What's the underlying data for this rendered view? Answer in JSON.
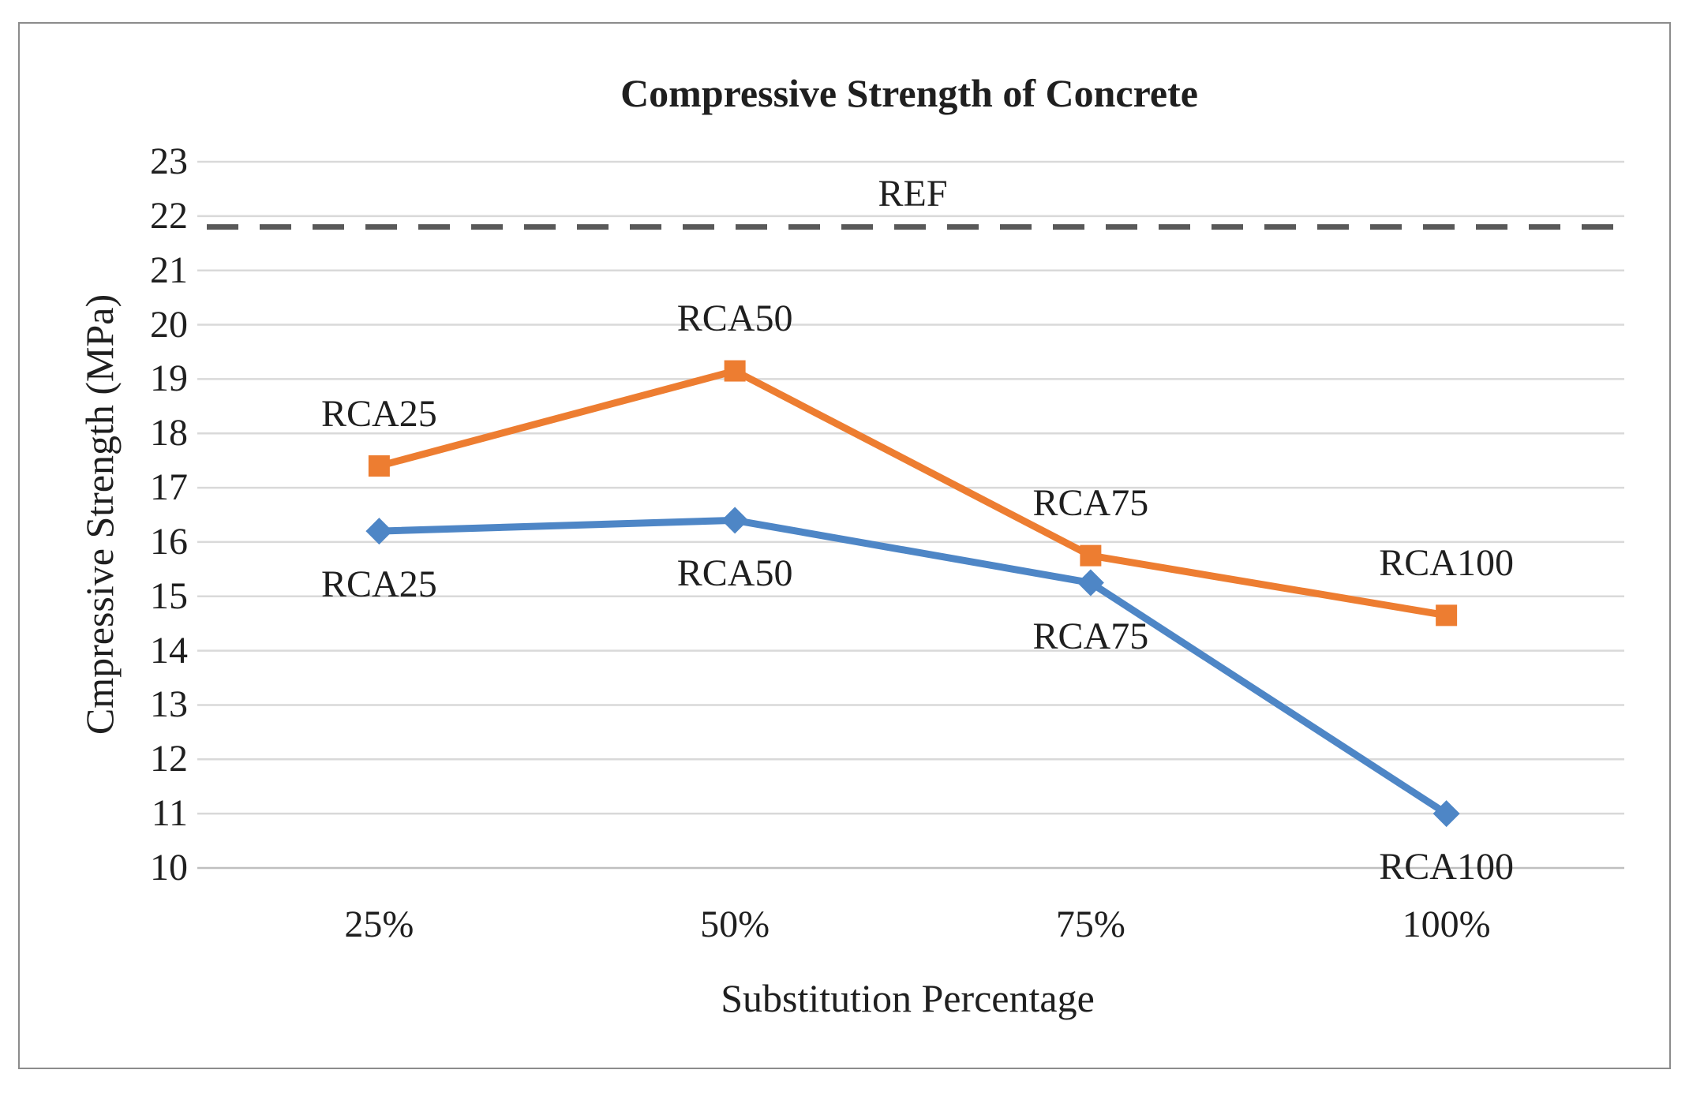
{
  "figure": {
    "background": "#FFFFFF",
    "border_color": "#8C8C8C"
  },
  "chart_data": {
    "type": "line",
    "title": "Compressive Strength of Concrete",
    "xlabel": "Substitution Percentage",
    "ylabel": "Cmpressive Strength (MPa)",
    "categories": [
      "25%",
      "50%",
      "75%",
      "100%"
    ],
    "ylim": [
      10,
      23
    ],
    "ytick_step": 1,
    "yticks": [
      "23",
      "22",
      "21",
      "20",
      "19",
      "18",
      "17",
      "16",
      "15",
      "14",
      "13",
      "12",
      "11",
      "10"
    ],
    "grid": true,
    "legend_position": "none",
    "series": [
      {
        "id": "orange-squares",
        "color": "#ED7D31",
        "marker": "square",
        "label_position": "above",
        "values": [
          17.4,
          19.15,
          15.75,
          14.65
        ],
        "point_labels": [
          "RCA25",
          "RCA50",
          "RCA75",
          "RCA100"
        ]
      },
      {
        "id": "blue-diamonds",
        "color": "#4E86C6",
        "marker": "diamond",
        "label_position": "below",
        "values": [
          16.2,
          16.4,
          15.25,
          11.0
        ],
        "point_labels": [
          "RCA25",
          "RCA50",
          "RCA75",
          "RCA100"
        ]
      }
    ],
    "ref_line": {
      "label": "REF",
      "value": 21.8,
      "style": "dashed",
      "color": "#595959"
    },
    "colors": {
      "gridline": "#D9D9D9",
      "axis_line": "#BFBFBF",
      "text": "#1F1F1F"
    }
  }
}
